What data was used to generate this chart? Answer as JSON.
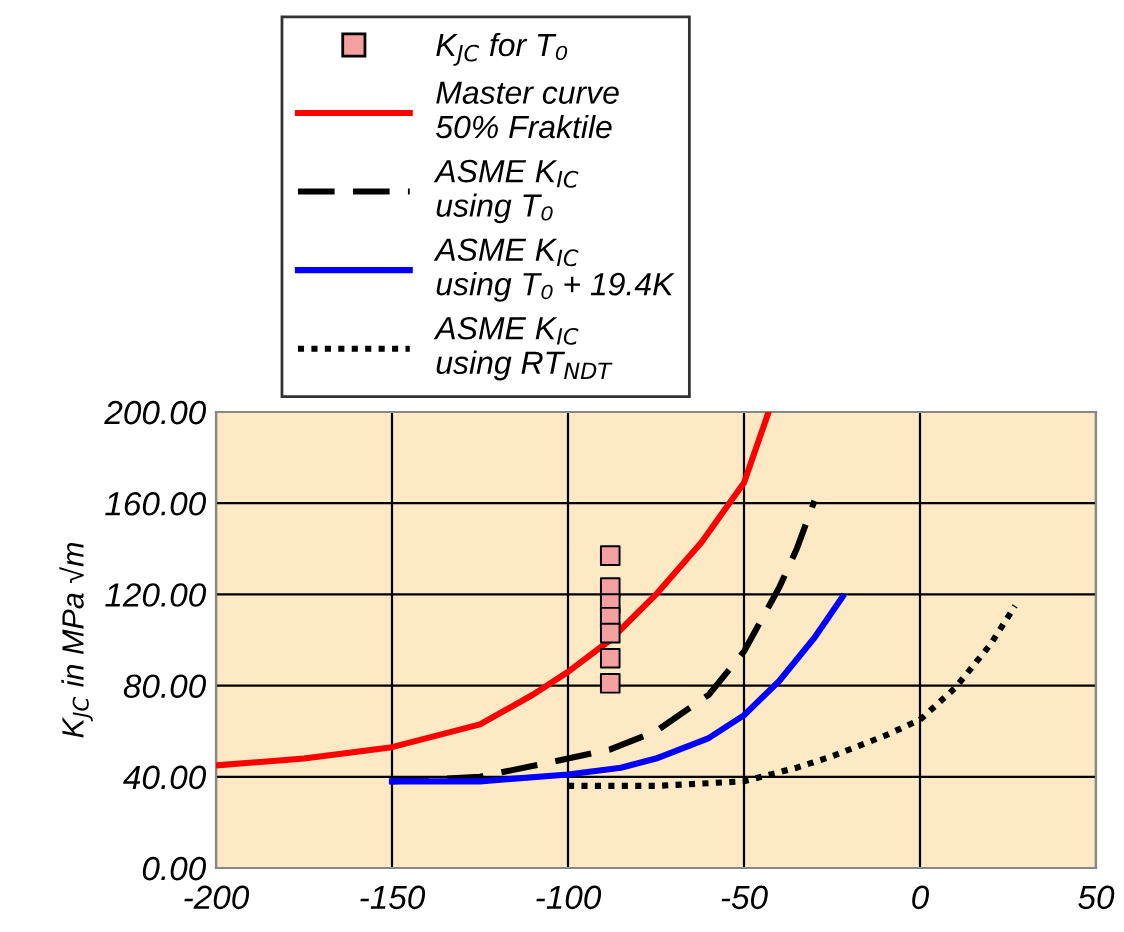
{
  "chart_data": {
    "type": "line",
    "ylabel": "K$_{JC}$ in MPa √m",
    "xlim": [
      -200,
      50
    ],
    "xticks": [
      -200,
      -150,
      -100,
      -50,
      0,
      50
    ],
    "ylim": [
      0,
      200
    ],
    "yticks": [
      {
        "value": 0,
        "label": "0.00"
      },
      {
        "value": 40,
        "label": "40.00"
      },
      {
        "value": 80,
        "label": "80.00"
      },
      {
        "value": 120,
        "label": "120.00"
      },
      {
        "value": 160,
        "label": "160.00"
      },
      {
        "value": 200,
        "label": "200.00"
      }
    ],
    "grid": true,
    "legend": "top",
    "series": [
      {
        "name": "K$_{JC}$ for T₀",
        "type": "scatter",
        "marker": "square",
        "color": "#f4a0a0",
        "x": [
          -88,
          -88,
          -88,
          -88,
          -88,
          -88,
          -88
        ],
        "values": [
          137,
          123,
          116,
          110,
          103,
          92,
          81
        ]
      },
      {
        "name": "Master curve\n50% Fraktile",
        "color": "#ff0000",
        "line_style": "solid",
        "x": [
          -200,
          -175,
          -150,
          -125,
          -110,
          -100,
          -88,
          -75,
          -62,
          -50,
          -43
        ],
        "values": [
          45,
          48,
          53,
          63,
          76,
          86,
          100,
          120,
          143,
          169,
          200
        ]
      },
      {
        "name": "ASME K$_{IC}$\nusing T₀",
        "color": "#000000",
        "line_style": "dashed",
        "x": [
          -150,
          -125,
          -100,
          -88,
          -75,
          -60,
          -50,
          -40,
          -35,
          -30
        ],
        "values": [
          38,
          40,
          48,
          52,
          60,
          76,
          95,
          123,
          140,
          161
        ]
      },
      {
        "name": "ASME K$_{IC}$\nusing T₀ + 19.4K",
        "color": "#0000ff",
        "line_style": "solid",
        "x": [
          -150,
          -125,
          -100,
          -85,
          -75,
          -60,
          -50,
          -40,
          -30,
          -22
        ],
        "values": [
          38,
          38,
          41,
          44,
          48,
          57,
          67,
          82,
          101,
          119
        ]
      },
      {
        "name": "ASME K$_{IC}$\nusing RT$_{NDT}$",
        "color": "#000000",
        "line_style": "dotted",
        "x": [
          -100,
          -75,
          -50,
          -35,
          -25,
          -10,
          0,
          10,
          20,
          27
        ],
        "values": [
          36,
          36,
          38,
          44,
          49,
          58,
          65,
          79,
          98,
          115
        ]
      }
    ]
  }
}
